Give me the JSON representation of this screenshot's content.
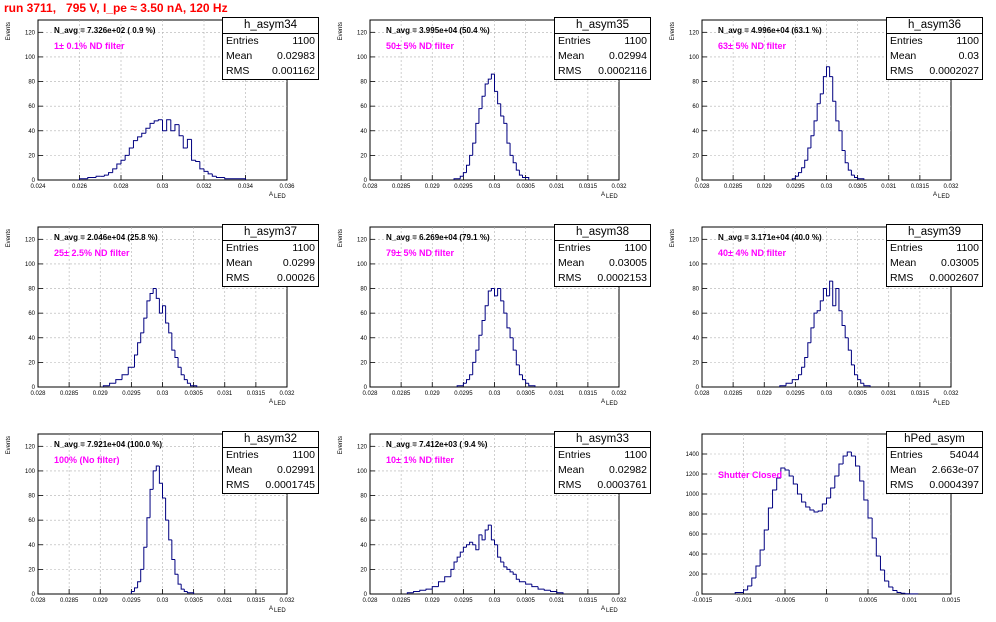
{
  "title": "run 3711,   795 V, I_pe ≈ 3.50 nA, 120 Hz",
  "chart_data": [
    {
      "type": "histogram",
      "name": "h_asym34",
      "stat_labels": [
        "Entries",
        "Mean",
        "RMS"
      ],
      "entries": "1100",
      "mean": "0.02983",
      "rms": "0.001162",
      "navg": "N_avg = 7.326e+02 ( 0.9 %)",
      "filter_label": "1± 0.1% ND filter",
      "ylabel": "Events",
      "xlabel": "A",
      "xlabel_sub": "LED",
      "xlim": [
        0.024,
        0.036
      ],
      "ylim": [
        0,
        130
      ],
      "xticks": [
        0.024,
        0.026,
        0.028,
        0.03,
        0.032,
        0.034,
        0.036
      ],
      "xtick_labels": [
        "0.024",
        "0.026",
        "0.028",
        "0.03",
        "0.032",
        "0.034",
        "0.036"
      ],
      "yticks": [
        0,
        20,
        40,
        60,
        80,
        100,
        120
      ],
      "ytick_labels": [
        "0",
        "20",
        "40",
        "60",
        "80",
        "100",
        "120"
      ],
      "bins": [
        0.026,
        0.0264,
        0.0268,
        0.027,
        0.0272,
        0.0274,
        0.0276,
        0.0278,
        0.028,
        0.0282,
        0.0284,
        0.0286,
        0.0288,
        0.029,
        0.0292,
        0.0294,
        0.0296,
        0.0298,
        0.03,
        0.0302,
        0.0304,
        0.0306,
        0.0308,
        0.031,
        0.0312,
        0.0314,
        0.0316,
        0.0318,
        0.032,
        0.0322,
        0.0324,
        0.0326,
        0.033,
        0.034
      ],
      "counts": [
        1,
        2,
        3,
        3,
        4,
        6,
        9,
        13,
        16,
        20,
        26,
        32,
        35,
        38,
        42,
        46,
        48,
        49,
        40,
        49,
        40,
        45,
        36,
        26,
        33,
        16,
        15,
        9,
        7,
        5,
        3,
        2,
        1
      ]
    },
    {
      "type": "histogram",
      "name": "h_asym35",
      "stat_labels": [
        "Entries",
        "Mean",
        "RMS"
      ],
      "entries": "1100",
      "mean": "0.02994",
      "rms": "0.0002116",
      "navg": "N_avg = 3.995e+04 (50.4 %)",
      "filter_label": "50± 5% ND filter",
      "ylabel": "Events",
      "xlabel": "A",
      "xlabel_sub": "LED",
      "xlim": [
        0.028,
        0.032
      ],
      "ylim": [
        0,
        130
      ],
      "xticks": [
        0.028,
        0.0285,
        0.029,
        0.0295,
        0.03,
        0.0305,
        0.031,
        0.0315,
        0.032
      ],
      "xtick_labels": [
        "0.028",
        "0.0285",
        "0.029",
        "0.0295",
        "0.03",
        "0.0305",
        "0.031",
        "0.0315",
        "0.032"
      ],
      "yticks": [
        0,
        20,
        40,
        60,
        80,
        100,
        120
      ],
      "ytick_labels": [
        "0",
        "20",
        "40",
        "60",
        "80",
        "100",
        "120"
      ],
      "bins": [
        0.02935,
        0.02945,
        0.0295,
        0.02955,
        0.0296,
        0.02965,
        0.0297,
        0.02975,
        0.0298,
        0.02985,
        0.0299,
        0.02995,
        0.03,
        0.03005,
        0.0301,
        0.03015,
        0.0302,
        0.03025,
        0.0303,
        0.03035,
        0.0304,
        0.03045,
        0.03055
      ],
      "counts": [
        1,
        3,
        6,
        12,
        20,
        30,
        46,
        58,
        68,
        78,
        82,
        86,
        72,
        62,
        52,
        46,
        30,
        20,
        14,
        8,
        4,
        2
      ]
    },
    {
      "type": "histogram",
      "name": "h_asym36",
      "stat_labels": [
        "Entries",
        "Mean",
        "RMS"
      ],
      "entries": "1100",
      "mean": "0.03",
      "rms": "0.0002027",
      "navg": "N_avg = 4.996e+04 (63.1 %)",
      "filter_label": "63± 5% ND filter",
      "ylabel": "Events",
      "xlabel": "A",
      "xlabel_sub": "LED",
      "xlim": [
        0.028,
        0.032
      ],
      "ylim": [
        0,
        130
      ],
      "xticks": [
        0.028,
        0.0285,
        0.029,
        0.0295,
        0.03,
        0.0305,
        0.031,
        0.0315,
        0.032
      ],
      "xtick_labels": [
        "0.028",
        "0.0285",
        "0.029",
        "0.0295",
        "0.03",
        "0.0305",
        "0.031",
        "0.0315",
        "0.032"
      ],
      "yticks": [
        0,
        20,
        40,
        60,
        80,
        100,
        120
      ],
      "ytick_labels": [
        "0",
        "20",
        "40",
        "60",
        "80",
        "100",
        "120"
      ],
      "bins": [
        0.02945,
        0.0295,
        0.02955,
        0.0296,
        0.02965,
        0.0297,
        0.02975,
        0.0298,
        0.02985,
        0.0299,
        0.02995,
        0.03,
        0.03005,
        0.0301,
        0.03015,
        0.0302,
        0.03025,
        0.0303,
        0.03035,
        0.0304,
        0.03045,
        0.0305,
        0.0306
      ],
      "counts": [
        1,
        3,
        6,
        10,
        16,
        26,
        36,
        48,
        62,
        70,
        84,
        92,
        84,
        64,
        48,
        40,
        24,
        14,
        8,
        4,
        2,
        1
      ]
    },
    {
      "type": "histogram",
      "name": "h_asym37",
      "stat_labels": [
        "Entries",
        "Mean",
        "RMS"
      ],
      "entries": "1100",
      "mean": "0.0299",
      "rms": "0.00026",
      "navg": "N_avg = 2.046e+04 (25.8 %)",
      "filter_label": "25± 2.5% ND filter",
      "ylabel": "Events",
      "xlabel": "A",
      "xlabel_sub": "LED",
      "xlim": [
        0.028,
        0.032
      ],
      "ylim": [
        0,
        130
      ],
      "xticks": [
        0.028,
        0.0285,
        0.029,
        0.0295,
        0.03,
        0.0305,
        0.031,
        0.0315,
        0.032
      ],
      "xtick_labels": [
        "0.028",
        "0.0285",
        "0.029",
        "0.0295",
        "0.03",
        "0.0305",
        "0.031",
        "0.0315",
        "0.032"
      ],
      "yticks": [
        0,
        20,
        40,
        60,
        80,
        100,
        120
      ],
      "ytick_labels": [
        "0",
        "20",
        "40",
        "60",
        "80",
        "100",
        "120"
      ],
      "bins": [
        0.02905,
        0.02915,
        0.02925,
        0.02935,
        0.02945,
        0.02955,
        0.0296,
        0.02965,
        0.0297,
        0.02975,
        0.0298,
        0.02985,
        0.0299,
        0.02995,
        0.03,
        0.03005,
        0.0301,
        0.03015,
        0.0302,
        0.03025,
        0.0303,
        0.03035,
        0.0304,
        0.03045,
        0.03055
      ],
      "counts": [
        1,
        3,
        6,
        10,
        16,
        26,
        36,
        44,
        56,
        70,
        76,
        80,
        72,
        60,
        66,
        52,
        44,
        30,
        24,
        16,
        10,
        6,
        3,
        1
      ]
    },
    {
      "type": "histogram",
      "name": "h_asym38",
      "stat_labels": [
        "Entries",
        "Mean",
        "RMS"
      ],
      "entries": "1100",
      "mean": "0.03005",
      "rms": "0.0002153",
      "navg": "N_avg = 6.269e+04 (79.1 %)",
      "filter_label": "79± 5% ND filter",
      "ylabel": "Events",
      "xlabel": "A",
      "xlabel_sub": "LED",
      "xlim": [
        0.028,
        0.032
      ],
      "ylim": [
        0,
        130
      ],
      "xticks": [
        0.028,
        0.0285,
        0.029,
        0.0295,
        0.03,
        0.0305,
        0.031,
        0.0315,
        0.032
      ],
      "xtick_labels": [
        "0.028",
        "0.0285",
        "0.029",
        "0.0295",
        "0.03",
        "0.0305",
        "0.031",
        "0.0315",
        "0.032"
      ],
      "yticks": [
        0,
        20,
        40,
        60,
        80,
        100,
        120
      ],
      "ytick_labels": [
        "0",
        "20",
        "40",
        "60",
        "80",
        "100",
        "120"
      ],
      "bins": [
        0.0294,
        0.0295,
        0.02955,
        0.0296,
        0.02965,
        0.0297,
        0.02975,
        0.0298,
        0.02985,
        0.0299,
        0.02995,
        0.03,
        0.03005,
        0.0301,
        0.03015,
        0.0302,
        0.03025,
        0.0303,
        0.03035,
        0.0304,
        0.03045,
        0.0305,
        0.03055,
        0.03065
      ],
      "counts": [
        1,
        3,
        6,
        10,
        20,
        30,
        42,
        54,
        66,
        78,
        80,
        74,
        80,
        70,
        60,
        48,
        40,
        30,
        18,
        10,
        6,
        3,
        1
      ]
    },
    {
      "type": "histogram",
      "name": "h_asym39",
      "stat_labels": [
        "Entries",
        "Mean",
        "RMS"
      ],
      "entries": "1100",
      "mean": "0.03005",
      "rms": "0.0002607",
      "navg": "N_avg = 3.171e+04 (40.0 %)",
      "filter_label": "40± 4% ND filter",
      "ylabel": "Events",
      "xlabel": "A",
      "xlabel_sub": "LED",
      "xlim": [
        0.028,
        0.032
      ],
      "ylim": [
        0,
        130
      ],
      "xticks": [
        0.028,
        0.0285,
        0.029,
        0.0295,
        0.03,
        0.0305,
        0.031,
        0.0315,
        0.032
      ],
      "xtick_labels": [
        "0.028",
        "0.0285",
        "0.029",
        "0.0295",
        "0.03",
        "0.0305",
        "0.031",
        "0.0315",
        "0.032"
      ],
      "yticks": [
        0,
        20,
        40,
        60,
        80,
        100,
        120
      ],
      "ytick_labels": [
        "0",
        "20",
        "40",
        "60",
        "80",
        "100",
        "120"
      ],
      "bins": [
        0.02925,
        0.02935,
        0.02945,
        0.02955,
        0.0296,
        0.02965,
        0.0297,
        0.02975,
        0.0298,
        0.02985,
        0.0299,
        0.02995,
        0.03,
        0.03005,
        0.0301,
        0.03015,
        0.0302,
        0.03025,
        0.0303,
        0.03035,
        0.0304,
        0.03045,
        0.0305,
        0.03055,
        0.0306,
        0.0307
      ],
      "counts": [
        1,
        3,
        6,
        10,
        16,
        24,
        36,
        48,
        60,
        62,
        70,
        80,
        74,
        86,
        66,
        80,
        62,
        50,
        40,
        30,
        18,
        10,
        6,
        3,
        1
      ]
    },
    {
      "type": "histogram",
      "name": "h_asym32",
      "stat_labels": [
        "Entries",
        "Mean",
        "RMS"
      ],
      "entries": "1100",
      "mean": "0.02991",
      "rms": "0.0001745",
      "navg": "N_avg = 7.921e+04 (100.0 %)",
      "filter_label": "100% (No filter)",
      "ylabel": "Events",
      "xlabel": "A",
      "xlabel_sub": "LED",
      "xlim": [
        0.028,
        0.032
      ],
      "ylim": [
        0,
        130
      ],
      "xticks": [
        0.028,
        0.0285,
        0.029,
        0.0295,
        0.03,
        0.0305,
        0.031,
        0.0315,
        0.032
      ],
      "xtick_labels": [
        "0.028",
        "0.0285",
        "0.029",
        "0.0295",
        "0.03",
        "0.0305",
        "0.031",
        "0.0315",
        "0.032"
      ],
      "yticks": [
        0,
        20,
        40,
        60,
        80,
        100,
        120
      ],
      "ytick_labels": [
        "0",
        "20",
        "40",
        "60",
        "80",
        "100",
        "120"
      ],
      "bins": [
        0.0295,
        0.02955,
        0.0296,
        0.02965,
        0.0297,
        0.02975,
        0.0298,
        0.02985,
        0.0299,
        0.02995,
        0.03,
        0.03005,
        0.0301,
        0.03015,
        0.0302,
        0.03025,
        0.0303,
        0.03035,
        0.0304,
        0.0305
      ],
      "counts": [
        2,
        5,
        10,
        20,
        38,
        62,
        85,
        100,
        104,
        90,
        78,
        60,
        44,
        28,
        16,
        8,
        4,
        2,
        1
      ]
    },
    {
      "type": "histogram",
      "name": "h_asym33",
      "stat_labels": [
        "Entries",
        "Mean",
        "RMS"
      ],
      "entries": "1100",
      "mean": "0.02982",
      "rms": "0.0003761",
      "navg": "N_avg = 7.412e+03 ( 9.4 %)",
      "filter_label": "10± 1% ND filter",
      "ylabel": "Events",
      "xlabel": "A",
      "xlabel_sub": "LED",
      "xlim": [
        0.028,
        0.032
      ],
      "ylim": [
        0,
        130
      ],
      "xticks": [
        0.028,
        0.0285,
        0.029,
        0.0295,
        0.03,
        0.0305,
        0.031,
        0.0315,
        0.032
      ],
      "xtick_labels": [
        "0.028",
        "0.0285",
        "0.029",
        "0.0295",
        "0.03",
        "0.0305",
        "0.031",
        "0.0315",
        "0.032"
      ],
      "yticks": [
        0,
        20,
        40,
        60,
        80,
        100,
        120
      ],
      "ytick_labels": [
        "0",
        "20",
        "40",
        "60",
        "80",
        "100",
        "120"
      ],
      "bins": [
        0.0286,
        0.0287,
        0.0288,
        0.0289,
        0.029,
        0.0291,
        0.0292,
        0.0293,
        0.02935,
        0.0294,
        0.02945,
        0.0295,
        0.02955,
        0.0296,
        0.02965,
        0.0297,
        0.02975,
        0.0298,
        0.02985,
        0.0299,
        0.02995,
        0.03,
        0.03005,
        0.0301,
        0.03015,
        0.0302,
        0.03025,
        0.0303,
        0.03035,
        0.0304,
        0.0305,
        0.0306,
        0.0307,
        0.0308,
        0.0309,
        0.031,
        0.0311
      ],
      "counts": [
        1,
        2,
        3,
        4,
        6,
        10,
        14,
        20,
        26,
        30,
        34,
        38,
        40,
        42,
        40,
        36,
        48,
        44,
        52,
        56,
        44,
        40,
        30,
        26,
        22,
        20,
        18,
        16,
        12,
        10,
        8,
        6,
        4,
        3,
        2,
        1
      ]
    },
    {
      "type": "histogram",
      "name": "hPed_asym",
      "stat_labels": [
        "Entries",
        "Mean",
        "RMS"
      ],
      "entries": "54044",
      "mean": "2.663e-07",
      "rms": "0.0004397",
      "navg": "",
      "filter_label": "Shutter Closed",
      "ylabel": "",
      "xlabel": "",
      "xlabel_sub": "",
      "xlim": [
        -0.0015,
        0.0015
      ],
      "ylim": [
        0,
        1600
      ],
      "xticks": [
        -0.0015,
        -0.001,
        -0.0005,
        0,
        0.0005,
        0.001,
        0.0015
      ],
      "xtick_labels": [
        "-0.0015",
        "-0.001",
        "-0.0005",
        "0",
        "0.0005",
        "0.001",
        "0.0015"
      ],
      "yticks": [
        0,
        200,
        400,
        600,
        800,
        1000,
        1200,
        1400
      ],
      "ytick_labels": [
        "0",
        "200",
        "400",
        "600",
        "800",
        "1000",
        "1200",
        "1400"
      ],
      "bins": [
        -0.0011,
        -0.001,
        -0.00095,
        -0.0009,
        -0.00085,
        -0.0008,
        -0.00075,
        -0.0007,
        -0.00065,
        -0.0006,
        -0.00055,
        -0.0005,
        -0.00045,
        -0.0004,
        -0.00035,
        -0.0003,
        -0.00025,
        -0.0002,
        -0.00015,
        -0.0001,
        -5e-05,
        0,
        5e-05,
        0.0001,
        0.00015,
        0.0002,
        0.00025,
        0.0003,
        0.00035,
        0.0004,
        0.00045,
        0.0005,
        0.00055,
        0.0006,
        0.00065,
        0.0007,
        0.00075,
        0.0008,
        0.00085,
        0.0009,
        0.00095,
        0.001,
        0.0011
      ],
      "counts": [
        15,
        40,
        80,
        160,
        280,
        440,
        640,
        860,
        1040,
        1160,
        1260,
        1240,
        1180,
        1100,
        1000,
        920,
        870,
        840,
        820,
        830,
        900,
        960,
        1060,
        1180,
        1300,
        1380,
        1420,
        1380,
        1280,
        1130,
        940,
        760,
        560,
        380,
        240,
        130,
        70,
        35,
        15,
        8,
        3,
        1
      ]
    }
  ]
}
